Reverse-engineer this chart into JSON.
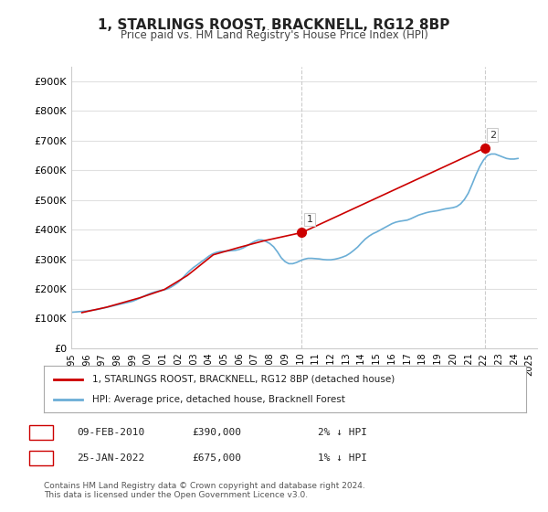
{
  "title": "1, STARLINGS ROOST, BRACKNELL, RG12 8BP",
  "subtitle": "Price paid vs. HM Land Registry's House Price Index (HPI)",
  "ylabel_ticks": [
    "£0",
    "£100K",
    "£200K",
    "£300K",
    "£400K",
    "£500K",
    "£600K",
    "£700K",
    "£800K",
    "£900K"
  ],
  "ytick_values": [
    0,
    100000,
    200000,
    300000,
    400000,
    500000,
    600000,
    700000,
    800000,
    900000
  ],
  "ylim": [
    0,
    950000
  ],
  "xlim_start": 1995.0,
  "xlim_end": 2025.5,
  "hpi_color": "#6baed6",
  "price_color": "#cc0000",
  "marker1_x": 2010.1,
  "marker1_y": 390000,
  "marker2_x": 2022.07,
  "marker2_y": 675000,
  "annotation1": "1",
  "annotation2": "2",
  "legend_line1": "1, STARLINGS ROOST, BRACKNELL, RG12 8BP (detached house)",
  "legend_line2": "HPI: Average price, detached house, Bracknell Forest",
  "table_rows": [
    [
      "1",
      "09-FEB-2010",
      "£390,000",
      "2% ↓ HPI"
    ],
    [
      "2",
      "25-JAN-2022",
      "£675,000",
      "1% ↓ HPI"
    ]
  ],
  "footer": "Contains HM Land Registry data © Crown copyright and database right 2024.\nThis data is licensed under the Open Government Licence v3.0.",
  "background_color": "#ffffff",
  "grid_color": "#e0e0e0",
  "hpi_data_x": [
    1995.0,
    1995.25,
    1995.5,
    1995.75,
    1996.0,
    1996.25,
    1996.5,
    1996.75,
    1997.0,
    1997.25,
    1997.5,
    1997.75,
    1998.0,
    1998.25,
    1998.5,
    1998.75,
    1999.0,
    1999.25,
    1999.5,
    1999.75,
    2000.0,
    2000.25,
    2000.5,
    2000.75,
    2001.0,
    2001.25,
    2001.5,
    2001.75,
    2002.0,
    2002.25,
    2002.5,
    2002.75,
    2003.0,
    2003.25,
    2003.5,
    2003.75,
    2004.0,
    2004.25,
    2004.5,
    2004.75,
    2005.0,
    2005.25,
    2005.5,
    2005.75,
    2006.0,
    2006.25,
    2006.5,
    2006.75,
    2007.0,
    2007.25,
    2007.5,
    2007.75,
    2008.0,
    2008.25,
    2008.5,
    2008.75,
    2009.0,
    2009.25,
    2009.5,
    2009.75,
    2010.0,
    2010.25,
    2010.5,
    2010.75,
    2011.0,
    2011.25,
    2011.5,
    2011.75,
    2012.0,
    2012.25,
    2012.5,
    2012.75,
    2013.0,
    2013.25,
    2013.5,
    2013.75,
    2014.0,
    2014.25,
    2014.5,
    2014.75,
    2015.0,
    2015.25,
    2015.5,
    2015.75,
    2016.0,
    2016.25,
    2016.5,
    2016.75,
    2017.0,
    2017.25,
    2017.5,
    2017.75,
    2018.0,
    2018.25,
    2018.5,
    2018.75,
    2019.0,
    2019.25,
    2019.5,
    2019.75,
    2020.0,
    2020.25,
    2020.5,
    2020.75,
    2021.0,
    2021.25,
    2021.5,
    2021.75,
    2022.0,
    2022.25,
    2022.5,
    2022.75,
    2023.0,
    2023.25,
    2023.5,
    2023.75,
    2024.0,
    2024.25
  ],
  "hpi_data_y": [
    121000,
    122000,
    123000,
    124000,
    125000,
    127000,
    129000,
    131000,
    134000,
    137000,
    140000,
    143000,
    146000,
    149000,
    152000,
    155000,
    158000,
    163000,
    169000,
    175000,
    181000,
    186000,
    190000,
    193000,
    196000,
    199000,
    205000,
    213000,
    222000,
    234000,
    248000,
    261000,
    272000,
    281000,
    291000,
    300000,
    310000,
    318000,
    323000,
    326000,
    327000,
    328000,
    329000,
    330000,
    333000,
    338000,
    345000,
    353000,
    360000,
    365000,
    365000,
    360000,
    353000,
    342000,
    325000,
    305000,
    292000,
    285000,
    285000,
    289000,
    295000,
    300000,
    303000,
    303000,
    302000,
    301000,
    299000,
    298000,
    298000,
    300000,
    303000,
    307000,
    312000,
    320000,
    330000,
    341000,
    355000,
    368000,
    378000,
    386000,
    392000,
    399000,
    406000,
    413000,
    420000,
    425000,
    428000,
    430000,
    432000,
    437000,
    443000,
    449000,
    453000,
    457000,
    460000,
    462000,
    464000,
    467000,
    470000,
    472000,
    474000,
    478000,
    487000,
    502000,
    523000,
    553000,
    585000,
    613000,
    635000,
    650000,
    655000,
    655000,
    650000,
    645000,
    640000,
    638000,
    638000,
    640000
  ],
  "price_paid_x": [
    1995.7,
    1997.3,
    1999.5,
    2001.1,
    2002.6,
    2004.3,
    2006.0,
    2007.6,
    2010.1,
    2022.07
  ],
  "price_paid_y": [
    120000,
    138000,
    170000,
    198000,
    245000,
    315000,
    340000,
    362000,
    390000,
    675000
  ]
}
